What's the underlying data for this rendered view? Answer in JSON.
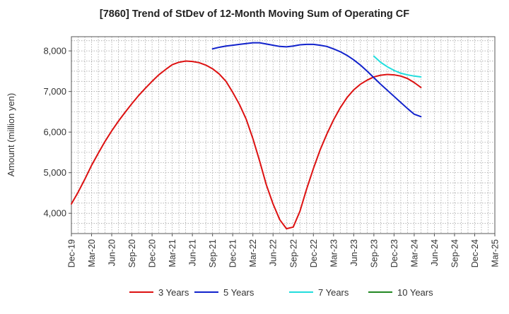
{
  "chart_data": {
    "type": "line",
    "title": "[7860]  Trend of StDev of 12-Month Moving Sum of Operating CF",
    "xlabel": "",
    "ylabel": "Amount (million yen)",
    "ylim": [
      3500,
      8350
    ],
    "yticks": [
      4000,
      5000,
      6000,
      7000,
      8000
    ],
    "ytick_labels": [
      "4,000",
      "5,000",
      "6,000",
      "7,000",
      "8,000"
    ],
    "x_categories": [
      "Dec-19",
      "Mar-20",
      "Jun-20",
      "Sep-20",
      "Dec-20",
      "Mar-21",
      "Jun-21",
      "Sep-21",
      "Dec-21",
      "Mar-22",
      "Jun-22",
      "Sep-22",
      "Dec-22",
      "Mar-23",
      "Jun-23",
      "Sep-23",
      "Dec-23",
      "Mar-24",
      "Jun-24",
      "Sep-24",
      "Dec-24",
      "Mar-25"
    ],
    "grid": true,
    "legend_position": "bottom",
    "series": [
      {
        "name": "3 Years",
        "color": "#dd1111",
        "points": [
          [
            "Dec-19",
            4230
          ],
          [
            "Jan-20",
            4520
          ],
          [
            "Feb-20",
            4840
          ],
          [
            "Mar-20",
            5180
          ],
          [
            "Apr-20",
            5480
          ],
          [
            "May-20",
            5770
          ],
          [
            "Jun-20",
            6030
          ],
          [
            "Jul-20",
            6270
          ],
          [
            "Aug-20",
            6490
          ],
          [
            "Sep-20",
            6700
          ],
          [
            "Oct-20",
            6900
          ],
          [
            "Nov-20",
            7080
          ],
          [
            "Dec-20",
            7250
          ],
          [
            "Jan-21",
            7410
          ],
          [
            "Feb-21",
            7540
          ],
          [
            "Mar-21",
            7660
          ],
          [
            "Apr-21",
            7720
          ],
          [
            "May-21",
            7750
          ],
          [
            "Jun-21",
            7740
          ],
          [
            "Jul-21",
            7710
          ],
          [
            "Aug-21",
            7650
          ],
          [
            "Sep-21",
            7560
          ],
          [
            "Oct-21",
            7430
          ],
          [
            "Nov-21",
            7250
          ],
          [
            "Dec-21",
            6980
          ],
          [
            "Jan-22",
            6680
          ],
          [
            "Feb-22",
            6320
          ],
          [
            "Mar-22",
            5840
          ],
          [
            "Apr-22",
            5290
          ],
          [
            "May-22",
            4700
          ],
          [
            "Jun-22",
            4230
          ],
          [
            "Jul-22",
            3840
          ],
          [
            "Aug-22",
            3620
          ],
          [
            "Sep-22",
            3660
          ],
          [
            "Oct-22",
            4050
          ],
          [
            "Nov-22",
            4600
          ],
          [
            "Dec-22",
            5100
          ],
          [
            "Jan-23",
            5560
          ],
          [
            "Feb-23",
            5950
          ],
          [
            "Mar-23",
            6300
          ],
          [
            "Apr-23",
            6600
          ],
          [
            "May-23",
            6850
          ],
          [
            "Jun-23",
            7040
          ],
          [
            "Jul-23",
            7180
          ],
          [
            "Aug-23",
            7280
          ],
          [
            "Sep-23",
            7360
          ],
          [
            "Oct-23",
            7400
          ],
          [
            "Nov-23",
            7420
          ],
          [
            "Dec-23",
            7410
          ],
          [
            "Jan-24",
            7380
          ],
          [
            "Feb-24",
            7320
          ],
          [
            "Mar-24",
            7220
          ],
          [
            "Apr-24",
            7100
          ]
        ]
      },
      {
        "name": "5 Years",
        "color": "#1122cc",
        "points": [
          [
            "Sep-21",
            8050
          ],
          [
            "Oct-21",
            8090
          ],
          [
            "Nov-21",
            8120
          ],
          [
            "Dec-21",
            8140
          ],
          [
            "Jan-22",
            8160
          ],
          [
            "Feb-22",
            8180
          ],
          [
            "Mar-22",
            8200
          ],
          [
            "Apr-22",
            8200
          ],
          [
            "May-22",
            8170
          ],
          [
            "Jun-22",
            8140
          ],
          [
            "Jul-22",
            8110
          ],
          [
            "Aug-22",
            8100
          ],
          [
            "Sep-22",
            8120
          ],
          [
            "Oct-22",
            8150
          ],
          [
            "Nov-22",
            8160
          ],
          [
            "Dec-22",
            8160
          ],
          [
            "Jan-23",
            8140
          ],
          [
            "Feb-23",
            8110
          ],
          [
            "Mar-23",
            8050
          ],
          [
            "Apr-23",
            7980
          ],
          [
            "May-23",
            7890
          ],
          [
            "Jun-23",
            7780
          ],
          [
            "Jul-23",
            7650
          ],
          [
            "Aug-23",
            7500
          ],
          [
            "Sep-23",
            7340
          ],
          [
            "Oct-23",
            7180
          ],
          [
            "Nov-23",
            7030
          ],
          [
            "Dec-23",
            6880
          ],
          [
            "Jan-24",
            6730
          ],
          [
            "Feb-24",
            6580
          ],
          [
            "Mar-24",
            6440
          ],
          [
            "Apr-24",
            6380
          ]
        ]
      },
      {
        "name": "7 Years",
        "color": "#22dddd",
        "points": [
          [
            "Sep-23",
            7870
          ],
          [
            "Oct-23",
            7720
          ],
          [
            "Nov-23",
            7610
          ],
          [
            "Dec-23",
            7520
          ],
          [
            "Jan-24",
            7450
          ],
          [
            "Feb-24",
            7410
          ],
          [
            "Mar-24",
            7380
          ],
          [
            "Apr-24",
            7360
          ]
        ]
      },
      {
        "name": "10 Years",
        "color": "#228822",
        "points": []
      }
    ]
  }
}
